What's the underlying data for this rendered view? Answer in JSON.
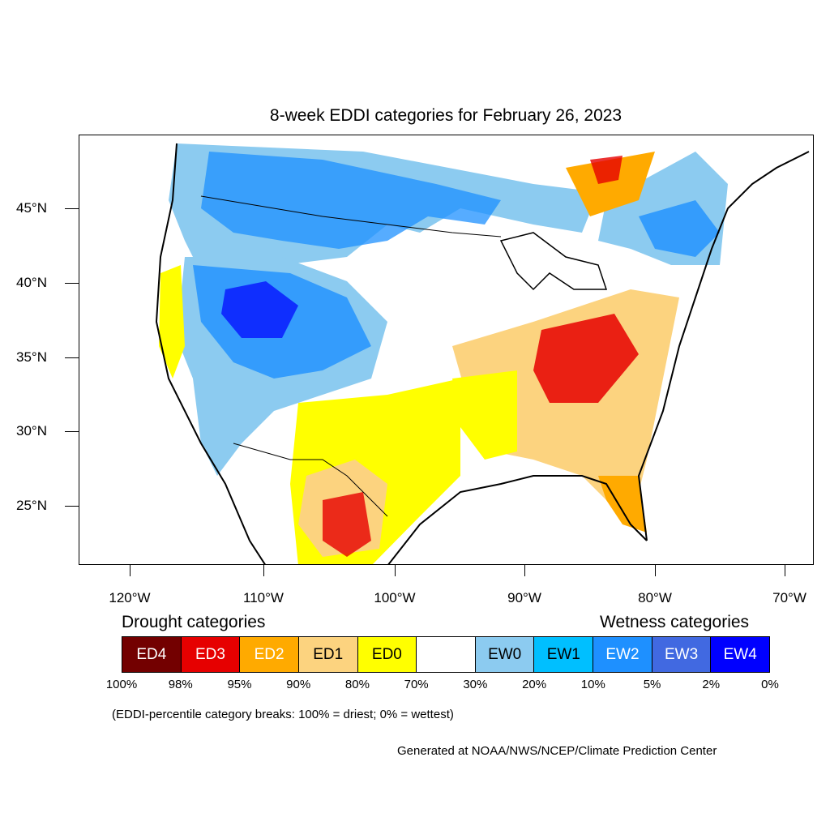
{
  "title": "8-week EDDI categories for February 26, 2023",
  "lat_labels": [
    "45°N",
    "40°N",
    "35°N",
    "30°N",
    "25°N"
  ],
  "lon_labels": [
    "120°W",
    "110°W",
    "100°W",
    "90°W",
    "80°W",
    "70°W"
  ],
  "legend": {
    "drought_heading": "Drought categories",
    "wetness_heading": "Wetness categories",
    "categories": [
      {
        "label": "ED4",
        "color": "#730000",
        "text_color": "#ffffff"
      },
      {
        "label": "ED3",
        "color": "#e60000",
        "text_color": "#ffffff"
      },
      {
        "label": "ED2",
        "color": "#ffaa00",
        "text_color": "#ffffff"
      },
      {
        "label": "ED1",
        "color": "#fcd37f",
        "text_color": "#000000"
      },
      {
        "label": "ED0",
        "color": "#ffff00",
        "text_color": "#000000"
      },
      {
        "label": "",
        "color": "#ffffff",
        "text_color": "#000000"
      },
      {
        "label": "EW0",
        "color": "#8ccbf0",
        "text_color": "#000000"
      },
      {
        "label": "EW1",
        "color": "#00bfff",
        "text_color": "#000000"
      },
      {
        "label": "EW2",
        "color": "#1e90ff",
        "text_color": "#ffffff"
      },
      {
        "label": "EW3",
        "color": "#4169e1",
        "text_color": "#ffffff"
      },
      {
        "label": "EW4",
        "color": "#0000ff",
        "text_color": "#ffffff"
      }
    ],
    "breaks": [
      "100%",
      "98%",
      "95%",
      "90%",
      "80%",
      "70%",
      "30%",
      "20%",
      "10%",
      "5%",
      "2%",
      "0%"
    ]
  },
  "note": "(EDDI-percentile category breaks: 100% = driest; 0% = wettest)",
  "credit": "Generated at NOAA/NWS/NCEP/Climate Prediction Center"
}
